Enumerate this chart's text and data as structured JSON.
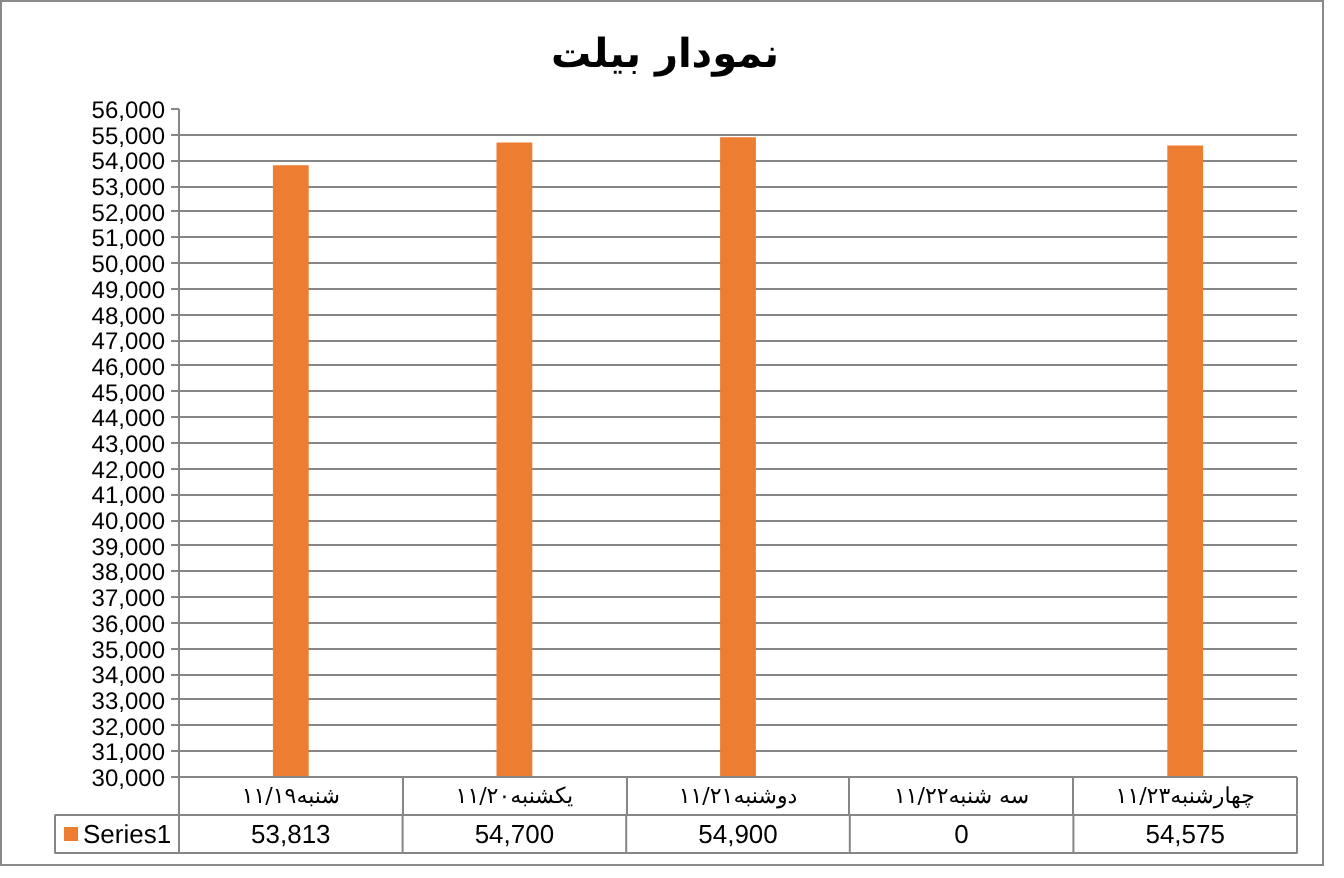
{
  "chart_data": {
    "type": "bar",
    "title": "نمودار بیلت",
    "categories": [
      "شنبه۱۱/۱۹",
      "یکشنبه۱۱/۲۰",
      "دوشنبه۱۱/۲۱",
      "سه شنبه۱۱/۲۲",
      "چهارشنبه۱۱/۲۳"
    ],
    "series": [
      {
        "name": "Series1",
        "color": "#ed7d31",
        "values": [
          53813,
          54700,
          54900,
          null,
          54575
        ],
        "value_labels": [
          "53,813",
          "54,700",
          "54,900",
          "0",
          "54,575"
        ]
      }
    ],
    "ylim": [
      30000,
      56000
    ],
    "yticks": [
      {
        "value": 30000,
        "label": "30,000"
      },
      {
        "value": 31000,
        "label": "31,000"
      },
      {
        "value": 32000,
        "label": "32,000"
      },
      {
        "value": 33000,
        "label": "33,000"
      },
      {
        "value": 34000,
        "label": "34,000"
      },
      {
        "value": 35000,
        "label": "35,000"
      },
      {
        "value": 36000,
        "label": "36,000"
      },
      {
        "value": 37000,
        "label": "37,000"
      },
      {
        "value": 38000,
        "label": "38,000"
      },
      {
        "value": 39000,
        "label": "39,000"
      },
      {
        "value": 40000,
        "label": "40,000"
      },
      {
        "value": 41000,
        "label": "41,000"
      },
      {
        "value": 42000,
        "label": "42,000"
      },
      {
        "value": 43000,
        "label": "43,000"
      },
      {
        "value": 44000,
        "label": "44,000"
      },
      {
        "value": 45000,
        "label": "45,000"
      },
      {
        "value": 46000,
        "label": "46,000"
      },
      {
        "value": 47000,
        "label": "47,000"
      },
      {
        "value": 48000,
        "label": "48,000"
      },
      {
        "value": 49000,
        "label": "49,000"
      },
      {
        "value": 50000,
        "label": "50,000"
      },
      {
        "value": 51000,
        "label": "51,000"
      },
      {
        "value": 52000,
        "label": "52,000"
      },
      {
        "value": 53000,
        "label": "53,000"
      },
      {
        "value": 54000,
        "label": "54,000"
      },
      {
        "value": 55000,
        "label": "55,000"
      },
      {
        "value": 56000,
        "label": "56,000"
      }
    ],
    "grid": "y",
    "legend": "bottom left"
  }
}
